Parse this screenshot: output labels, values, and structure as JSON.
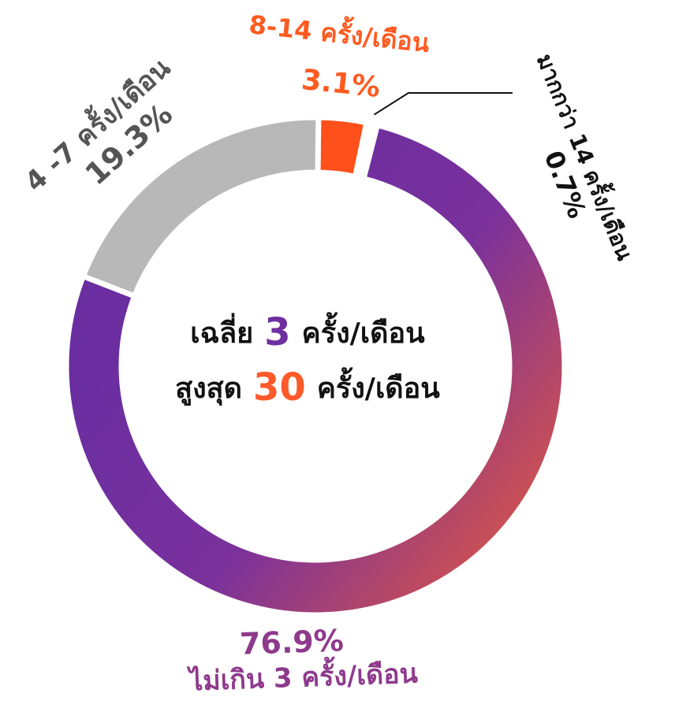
{
  "chart_data": {
    "type": "pie",
    "donut": true,
    "categories": [
      "8-14 ครั้ง/เดือน",
      "มากกว่า 14 ครั้ง/เดือน",
      "ไม่เกิน 3 ครั้ง/เดือน",
      "4 -7 ครั้ง/เดือน"
    ],
    "values": [
      3.1,
      0.7,
      76.9,
      19.3
    ],
    "value_labels": [
      "3.1%",
      "0.7%",
      "76.9%",
      "19.3%"
    ],
    "colors": [
      "#ff4f1a",
      "#ffffff",
      "#7a319c",
      "#b8b8b8"
    ],
    "label_colors": [
      "#ff5a1f",
      "#111111",
      "#8e3a8c",
      "#555555"
    ],
    "center": {
      "line1": {
        "prefix": "เฉลี่ย",
        "number": "3",
        "suffix": "ครั้ง/เดือน"
      },
      "line2": {
        "prefix": "สูงสุด",
        "number": "30",
        "suffix": "ครั้ง/เดือน"
      }
    }
  }
}
